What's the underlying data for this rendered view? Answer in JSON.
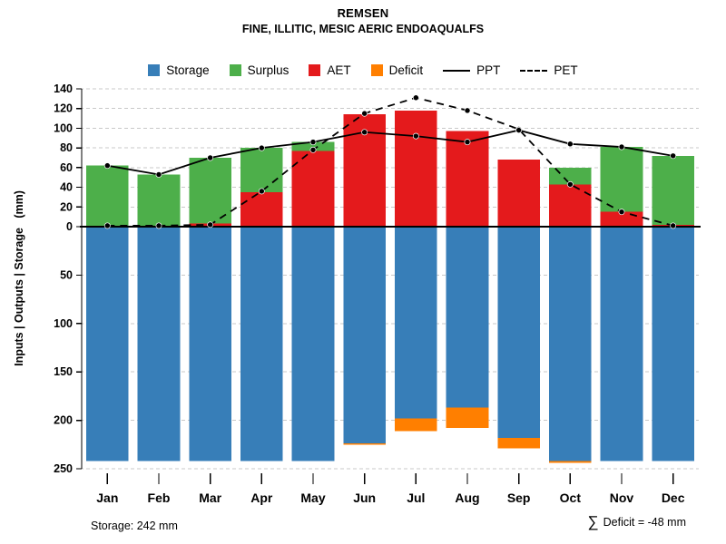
{
  "title": "REMSEN",
  "subtitle": "FINE, ILLITIC, MESIC AERIC ENDOAQUALFS",
  "y_axis_label": "Inputs | Outputs | Storage   (mm)",
  "legend": [
    {
      "id": "storage",
      "label": "Storage",
      "swatch": "square",
      "color": "#377EB8"
    },
    {
      "id": "surplus",
      "label": "Surplus",
      "swatch": "square",
      "color": "#4DAF4A"
    },
    {
      "id": "aet",
      "label": "AET",
      "swatch": "square",
      "color": "#E41A1C"
    },
    {
      "id": "deficit",
      "label": "Deficit",
      "swatch": "square",
      "color": "#FF7F00"
    },
    {
      "id": "ppt",
      "label": "PPT",
      "swatch": "line-solid",
      "color": "#000000"
    },
    {
      "id": "pet",
      "label": "PET",
      "swatch": "line-dashed",
      "color": "#000000"
    }
  ],
  "footer": {
    "storage_note": "Storage: 242 mm",
    "deficit_sigma": "∑",
    "deficit_note": "Deficit = -48 mm"
  },
  "chart_data": {
    "type": "bar",
    "subtype": "water-balance: stacked bars above/below zero plus two lines",
    "title": "REMSEN",
    "subtitle": "FINE, ILLITIC, MESIC AERIC ENDOAQUALFS",
    "categories": [
      "Jan",
      "Feb",
      "Mar",
      "Apr",
      "May",
      "Jun",
      "Jul",
      "Aug",
      "Sep",
      "Oct",
      "Nov",
      "Dec"
    ],
    "series": [
      {
        "name": "Storage",
        "render": "bar-down",
        "color": "#377EB8",
        "values": [
          242,
          242,
          242,
          242,
          242,
          224,
          198,
          187,
          218,
          242,
          242,
          242
        ]
      },
      {
        "name": "AET",
        "render": "bar-up",
        "color": "#E41A1C",
        "values": [
          1,
          1,
          3,
          35,
          77,
          114,
          118,
          97,
          68,
          43,
          15,
          2
        ]
      },
      {
        "name": "Surplus",
        "render": "bar-up-stacked-on-AET",
        "color": "#4DAF4A",
        "values": [
          61,
          52,
          67,
          45,
          9,
          0,
          0,
          0,
          0,
          17,
          66,
          70
        ]
      },
      {
        "name": "Deficit",
        "render": "bar-down-below-storage",
        "color": "#FF7F00",
        "values": [
          0,
          0,
          0,
          0,
          0,
          -1,
          -13,
          -21,
          -11,
          -2,
          0,
          0
        ]
      },
      {
        "name": "PPT",
        "render": "line-solid",
        "color": "#000000",
        "values": [
          62,
          53,
          70,
          80,
          86,
          96,
          92,
          86,
          98,
          84,
          81,
          72
        ]
      },
      {
        "name": "PET",
        "render": "line-dashed",
        "color": "#000000",
        "values": [
          1,
          1,
          2,
          36,
          78,
          115,
          131,
          118,
          99,
          43,
          15,
          1
        ]
      }
    ],
    "y_axis": {
      "label": "Inputs | Outputs | Storage (mm)",
      "up_ticks": [
        0,
        20,
        40,
        60,
        80,
        100,
        120,
        140
      ],
      "down_ticks": [
        50,
        100,
        150,
        200,
        250
      ],
      "up_max": 140,
      "down_max": 250
    },
    "grid": "dashed-horizontal",
    "legend_position": "top",
    "annotations": {
      "storage_capacity_mm": "242",
      "deficit_sum_mm": "-48"
    }
  }
}
